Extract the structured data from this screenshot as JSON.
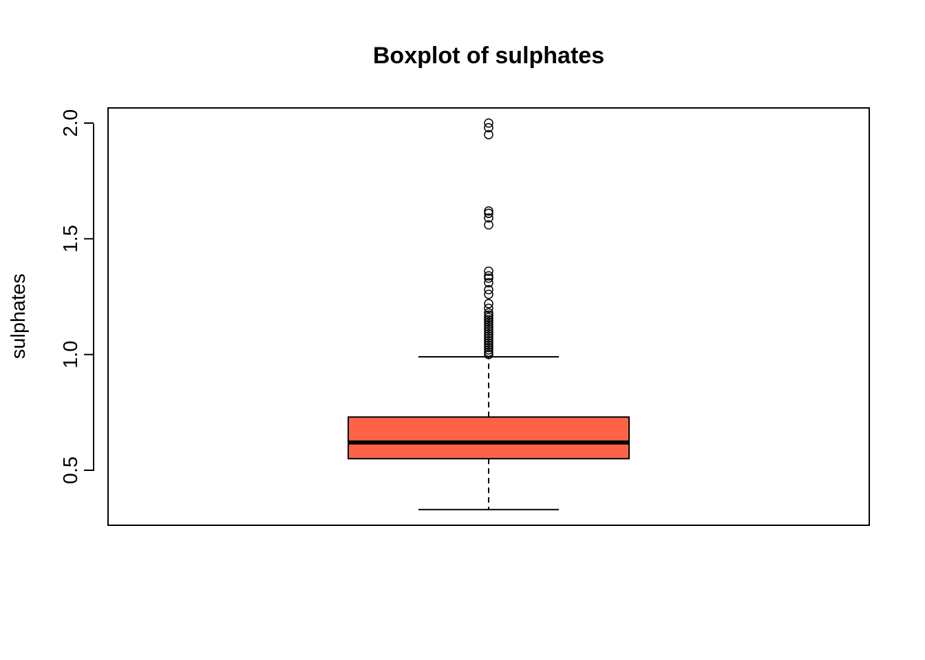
{
  "chart_data": {
    "type": "boxplot",
    "title": "Boxplot of sulphates",
    "xlabel": "",
    "ylabel": "sulphates",
    "ylim": [
      0.33,
      2.0
    ],
    "yticks": [
      0.5,
      1.0,
      1.5,
      2.0
    ],
    "ytick_labels": [
      "0.5",
      "1.0",
      "1.5",
      "2.0"
    ],
    "grid": false,
    "legend": "none",
    "box_color": "#FF6347",
    "box": {
      "lower_whisker": 0.33,
      "q1": 0.55,
      "median": 0.62,
      "q3": 0.73,
      "upper_whisker": 0.99
    },
    "outliers": [
      1.0,
      1.01,
      1.02,
      1.03,
      1.04,
      1.05,
      1.06,
      1.07,
      1.08,
      1.09,
      1.1,
      1.11,
      1.12,
      1.13,
      1.14,
      1.15,
      1.16,
      1.17,
      1.18,
      1.2,
      1.22,
      1.26,
      1.28,
      1.31,
      1.33,
      1.34,
      1.36,
      1.56,
      1.59,
      1.61,
      1.62,
      1.95,
      1.98,
      2.0
    ]
  }
}
